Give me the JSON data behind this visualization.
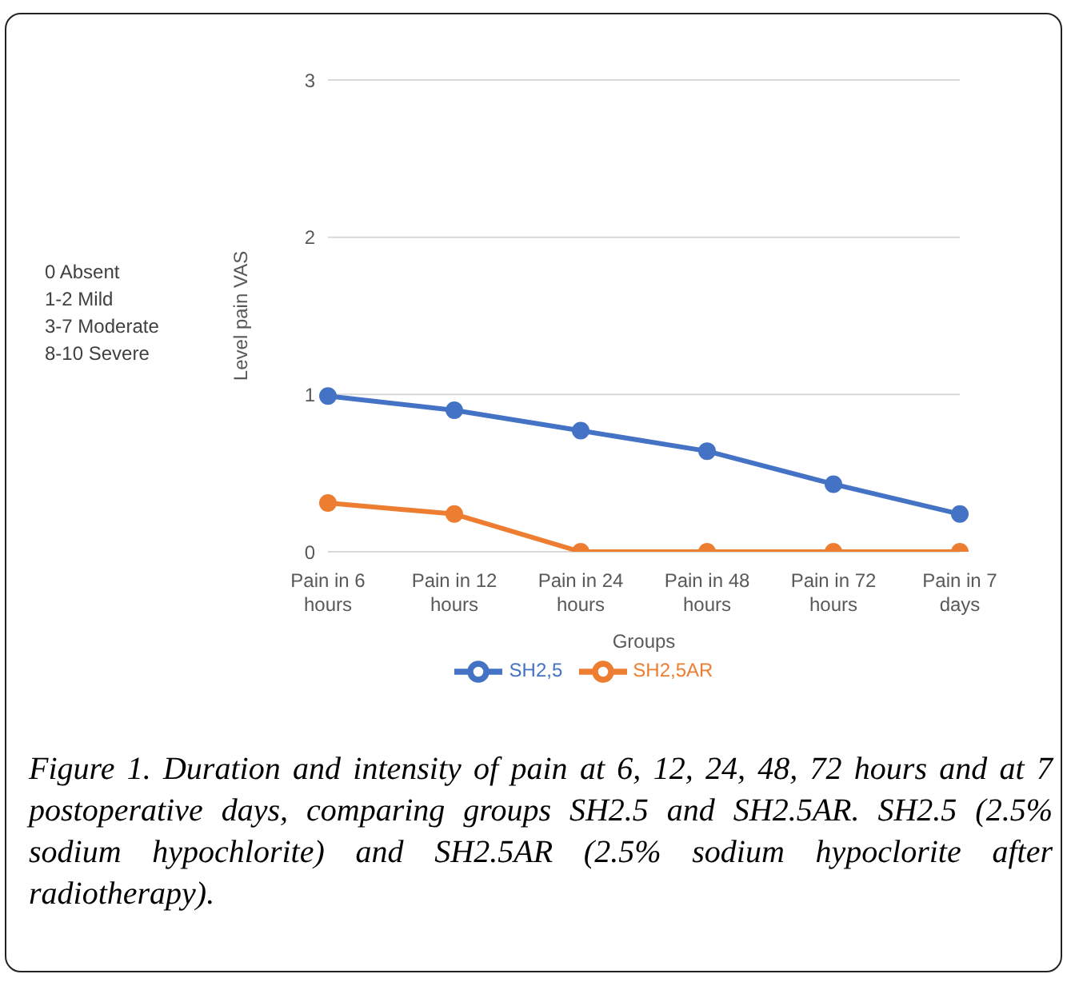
{
  "chart_data": {
    "type": "line",
    "xlabel": "Groups",
    "ylabel": "Level pain VAS",
    "categories": [
      "Pain in 6 hours",
      "Pain in 12 hours",
      "Pain in 24 hours",
      "Pain in 48 hours",
      "Pain in 72 hours",
      "Pain in 7 days"
    ],
    "series": [
      {
        "name": "SH2,5",
        "color": "#4472c4",
        "values": [
          0.99,
          0.9,
          0.77,
          0.64,
          0.43,
          0.24
        ]
      },
      {
        "name": "SH2,5AR",
        "color": "#ed7d31",
        "values": [
          0.31,
          0.24,
          0,
          0,
          0,
          0
        ]
      }
    ],
    "ylim": [
      0,
      3
    ],
    "yticks": [
      0,
      1,
      2,
      3
    ],
    "grid": "y",
    "legend": "bottom",
    "marker": "circle",
    "line_style": "solid",
    "annotations": [
      "0 Absent\n1-2 Mild\n3-7 Moderate\n8-10 Severe",
      "Figure 1. Duration and intensity of pain at 6, 12, 24, 48, 72 hours and at 7 postoperative days, comparing groups SH2.5 and SH2.5AR. SH2.5 (2.5% sodium hypochlorite) and SH2.5AR (2.5% sodium hypoclorite after radiotherapy)."
    ]
  }
}
